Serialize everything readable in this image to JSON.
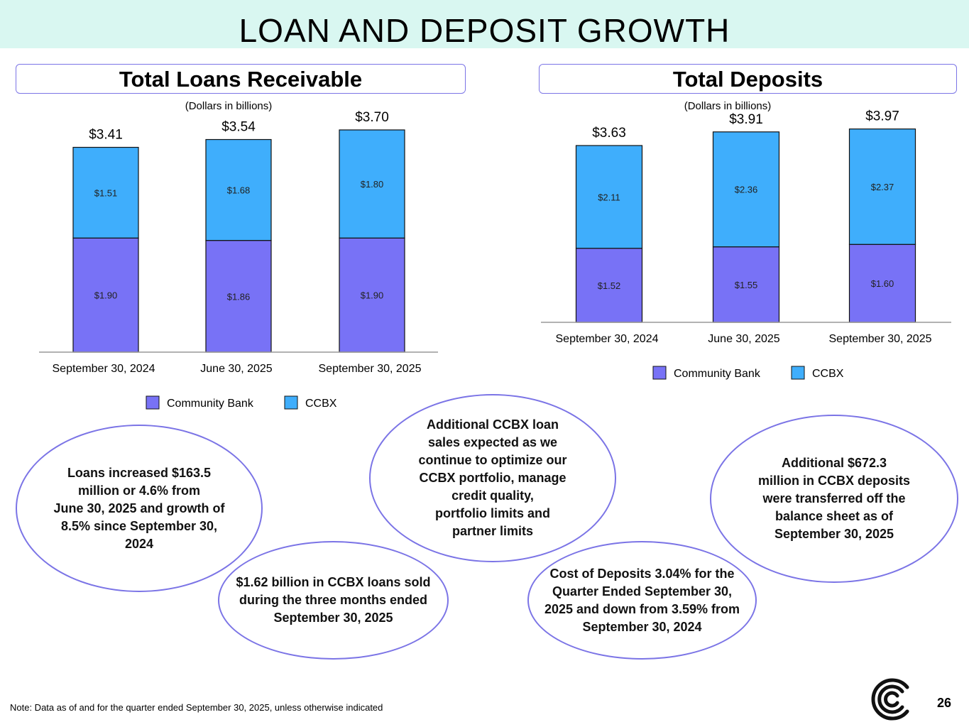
{
  "page_title": "LOAN AND DEPOSIT GROWTH",
  "colors": {
    "community_bank": "#7872f6",
    "ccbx": "#3faefc",
    "outline": "#7b74e6",
    "banner": "#d9f7f1"
  },
  "chart_data": [
    {
      "type": "bar",
      "stacked": true,
      "title": "Total Loans Receivable",
      "subtitle": "(Dollars in billions)",
      "categories": [
        "September 30, 2024",
        "June 30, 2025",
        "September 30, 2025"
      ],
      "series": [
        {
          "name": "Community Bank",
          "values": [
            1.9,
            1.86,
            1.9
          ],
          "labels": [
            "$1.90",
            "$1.86",
            "$1.90"
          ]
        },
        {
          "name": "CCBX",
          "values": [
            1.51,
            1.68,
            1.8
          ],
          "labels": [
            "$1.51",
            "$1.68",
            "$1.80"
          ]
        }
      ],
      "totals": [
        3.41,
        3.54,
        3.7
      ],
      "total_labels": [
        "$3.41",
        "$3.54",
        "$3.70"
      ],
      "legend": [
        "Community Bank",
        "CCBX"
      ],
      "legend_position": "bottom"
    },
    {
      "type": "bar",
      "stacked": true,
      "title": "Total Deposits",
      "subtitle": "(Dollars in billions)",
      "categories": [
        "September 30, 2024",
        "June 30, 2025",
        "September 30, 2025"
      ],
      "series": [
        {
          "name": "Community Bank",
          "values": [
            1.52,
            1.55,
            1.6
          ],
          "labels": [
            "$1.52",
            "$1.55",
            "$1.60"
          ]
        },
        {
          "name": "CCBX",
          "values": [
            2.11,
            2.36,
            2.37
          ],
          "labels": [
            "$2.11",
            "$2.36",
            "$2.37"
          ]
        }
      ],
      "totals": [
        3.63,
        3.91,
        3.97
      ],
      "total_labels": [
        "$3.63",
        "$3.91",
        "$3.97"
      ],
      "legend": [
        "Community Bank",
        "CCBX"
      ],
      "legend_position": "bottom"
    }
  ],
  "callouts": {
    "loans_increase": "Loans increased $163.5\nmillion or 4.6% from\nJune 30, 2025 and growth of\n8.5% since September 30,\n2024",
    "ccbx_sold": "$1.62 billion in CCBX loans sold\nduring the three months ended\nSeptember 30, 2025",
    "additional_sales": "Additional CCBX loan\nsales expected as we\ncontinue to optimize our\nCCBX portfolio, manage\ncredit quality,\nportfolio limits and\npartner limits",
    "cost_of_deposits": "Cost of Deposits 3.04% for the\nQuarter Ended September 30,\n2025 and down from 3.59% from\nSeptember 30, 2024",
    "deposits_transferred": "Additional $672.3\nmillion in CCBX deposits\nwere transferred off the\nbalance sheet  as of\nSeptember 30, 2025"
  },
  "footer": {
    "note": "Note:  Data as of and for the quarter ended September 30, 2025, unless otherwise indicated",
    "page_number": "26",
    "logo_icon": "company-logo-icon"
  }
}
